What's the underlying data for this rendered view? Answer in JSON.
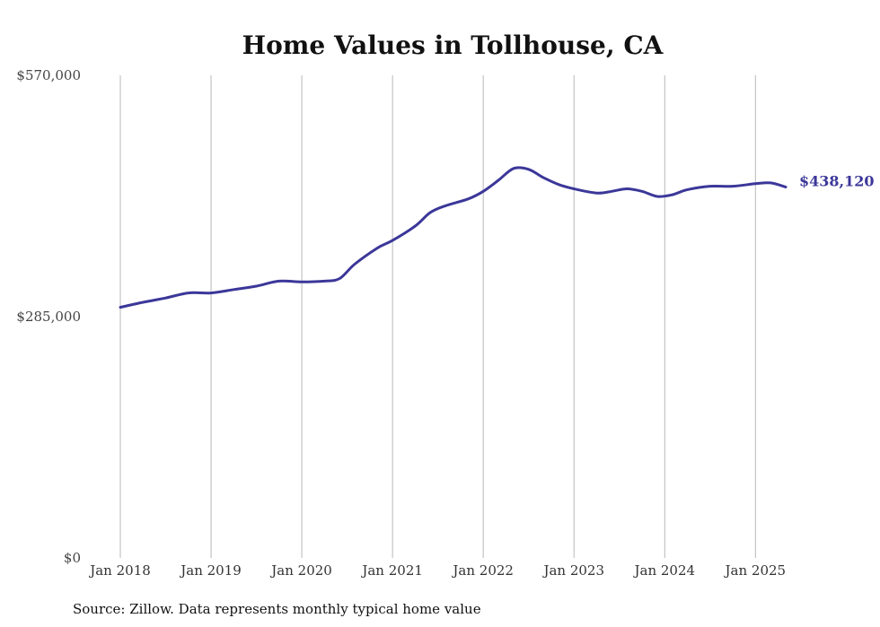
{
  "chart_data": {
    "type": "line",
    "title": "Home Values in Tollhouse, CA",
    "source": "Source: Zillow. Data represents monthly typical home value",
    "ylim": [
      0,
      570000
    ],
    "yticks": [
      {
        "value": 570000,
        "label": "$570,000"
      },
      {
        "value": 285000,
        "label": "$285,000"
      },
      {
        "value": 0,
        "label": "$0"
      }
    ],
    "xlim": [
      "2018-01",
      "2025-05"
    ],
    "xticks": [
      {
        "date": "2018-01",
        "label": "Jan 2018"
      },
      {
        "date": "2019-01",
        "label": "Jan 2019"
      },
      {
        "date": "2020-01",
        "label": "Jan 2020"
      },
      {
        "date": "2021-01",
        "label": "Jan 2021"
      },
      {
        "date": "2022-01",
        "label": "Jan 2022"
      },
      {
        "date": "2023-01",
        "label": "Jan 2023"
      },
      {
        "date": "2024-01",
        "label": "Jan 2024"
      },
      {
        "date": "2025-01",
        "label": "Jan 2025"
      }
    ],
    "grid": "vertical",
    "line_color": "#3b3799",
    "end_label": "$438,120",
    "series": [
      {
        "points": [
          [
            "2018-01",
            296000
          ],
          [
            "2018-04",
            302000
          ],
          [
            "2018-07",
            307000
          ],
          [
            "2018-10",
            313000
          ],
          [
            "2019-01",
            313000
          ],
          [
            "2019-04",
            317000
          ],
          [
            "2019-07",
            321000
          ],
          [
            "2019-10",
            327000
          ],
          [
            "2020-01",
            326000
          ],
          [
            "2020-04",
            327000
          ],
          [
            "2020-06",
            330000
          ],
          [
            "2020-08",
            347000
          ],
          [
            "2020-11",
            366000
          ],
          [
            "2021-01",
            375000
          ],
          [
            "2021-04",
            392000
          ],
          [
            "2021-06",
            408000
          ],
          [
            "2021-08",
            416000
          ],
          [
            "2021-11",
            424000
          ],
          [
            "2022-01",
            433000
          ],
          [
            "2022-03",
            446000
          ],
          [
            "2022-05",
            460000
          ],
          [
            "2022-07",
            459000
          ],
          [
            "2022-09",
            449000
          ],
          [
            "2022-11",
            441000
          ],
          [
            "2023-01",
            436000
          ],
          [
            "2023-04",
            431000
          ],
          [
            "2023-06",
            433000
          ],
          [
            "2023-08",
            436000
          ],
          [
            "2023-10",
            433000
          ],
          [
            "2023-12",
            427000
          ],
          [
            "2024-02",
            429000
          ],
          [
            "2024-04",
            435000
          ],
          [
            "2024-07",
            439000
          ],
          [
            "2024-10",
            439000
          ],
          [
            "2025-01",
            442000
          ],
          [
            "2025-03",
            443000
          ],
          [
            "2025-05",
            438120
          ]
        ]
      }
    ]
  }
}
